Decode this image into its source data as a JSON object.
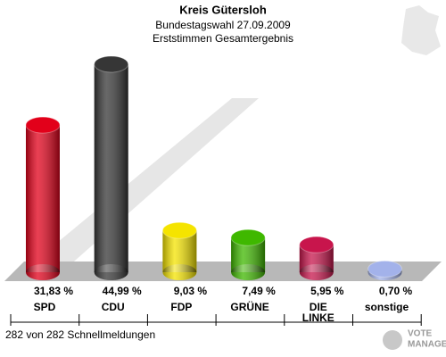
{
  "chart_data": {
    "type": "bar",
    "title": "Kreis Gütersloh",
    "subtitle": [
      "Bundestagswahl 27.09.2009",
      "Erststimmen Gesamtergebnis"
    ],
    "categories": [
      "SPD",
      "CDU",
      "FDP",
      "GRÜNE",
      "DIE\nLINKE",
      "sonstige"
    ],
    "values": [
      31.83,
      44.99,
      9.03,
      7.49,
      5.95,
      0.7
    ],
    "value_labels": [
      "31,83 %",
      "44,99 %",
      "9,03 %",
      "7,49 %",
      "5,95 %",
      "0,70 %"
    ],
    "colors": [
      "#e2001a",
      "#363636",
      "#f5e400",
      "#3fb800",
      "#c8154c",
      "#a3b2ea"
    ],
    "footer": "282 von 282 Schnellmeldungen",
    "logo": [
      "VOTE",
      "MANAGER"
    ]
  }
}
